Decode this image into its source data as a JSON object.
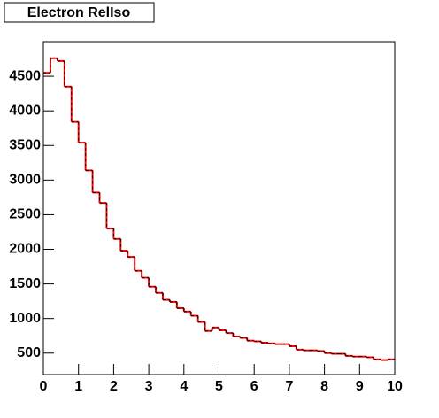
{
  "chart_data": {
    "type": "histogram",
    "title": "Electron RelIso",
    "bins": [
      0,
      0.2,
      0.4,
      0.6,
      0.8,
      1,
      1.2,
      1.4,
      1.6,
      1.8,
      2,
      2.2,
      2.4,
      2.6,
      2.8,
      3,
      3.2,
      3.4,
      3.6,
      3.8,
      4,
      4.2,
      4.4,
      4.6,
      4.8,
      5,
      5.2,
      5.4,
      5.6,
      5.8,
      6,
      6.2,
      6.4,
      6.6,
      6.8,
      7,
      7.2,
      7.4,
      7.6,
      7.8,
      8,
      8.2,
      8.4,
      8.6,
      8.8,
      9,
      9.2,
      9.4,
      9.6,
      9.8,
      10
    ],
    "values": [
      4550,
      4760,
      4720,
      4350,
      3840,
      3540,
      3140,
      2820,
      2670,
      2300,
      2150,
      1980,
      1890,
      1690,
      1590,
      1460,
      1370,
      1270,
      1240,
      1150,
      1100,
      1040,
      950,
      820,
      870,
      830,
      790,
      740,
      720,
      680,
      670,
      650,
      640,
      630,
      630,
      600,
      550,
      540,
      540,
      530,
      500,
      490,
      490,
      460,
      450,
      450,
      440,
      410,
      400,
      410
    ],
    "color": "#ff0000",
    "xlim": [
      0,
      10
    ],
    "xticks": [
      0,
      1,
      2,
      3,
      4,
      5,
      6,
      7,
      8,
      9,
      10
    ],
    "ylim": [
      190,
      5000
    ],
    "yticks": [
      500,
      1000,
      1500,
      2000,
      2500,
      3000,
      3500,
      4000,
      4500
    ]
  }
}
